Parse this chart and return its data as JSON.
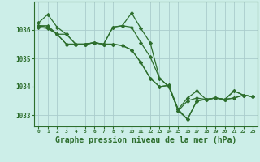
{
  "background_color": "#cceee8",
  "grid_color": "#aacccc",
  "line_color": "#2d6e2d",
  "marker": "D",
  "marker_size": 2.2,
  "linewidth": 0.9,
  "xlabel": "Graphe pression niveau de la mer (hPa)",
  "xlabel_fontsize": 7,
  "ylabel_ticks": [
    1033,
    1034,
    1035,
    1036
  ],
  "xticks": [
    0,
    1,
    2,
    3,
    4,
    5,
    6,
    7,
    8,
    9,
    10,
    11,
    12,
    13,
    14,
    15,
    16,
    17,
    18,
    19,
    20,
    21,
    22,
    23
  ],
  "xlim": [
    -0.5,
    23.5
  ],
  "ylim": [
    1032.6,
    1037.0
  ],
  "series": [
    [
      1036.25,
      1036.55,
      1036.1,
      1035.85,
      1035.5,
      1035.5,
      1035.55,
      1035.5,
      1036.1,
      1036.15,
      1036.6,
      1036.05,
      1035.55,
      1034.3,
      1034.0,
      1033.2,
      1032.85,
      1033.5,
      1033.55,
      1033.6,
      1033.55,
      1033.85,
      1033.7,
      1033.65
    ],
    [
      1036.15,
      1036.1,
      1035.85,
      1035.5,
      1035.5,
      1035.5,
      1035.55,
      1035.5,
      1035.5,
      1035.45,
      1035.3,
      1034.85,
      1034.3,
      1034.0,
      1034.05,
      1033.2,
      1033.6,
      1033.85,
      1033.55,
      1033.6,
      1033.55,
      1033.6,
      1033.7,
      1033.65
    ],
    [
      1036.15,
      1036.15,
      1035.85,
      1035.85,
      1035.5,
      1035.5,
      1035.55,
      1035.5,
      1036.1,
      1036.15,
      1036.1,
      1035.55,
      1035.05,
      1034.3,
      1034.0,
      1033.15,
      1032.85,
      1033.5,
      1033.55,
      1033.6,
      1033.55,
      1033.85,
      1033.7,
      1033.65
    ],
    [
      1036.1,
      1036.05,
      1035.85,
      1035.5,
      1035.5,
      1035.5,
      1035.55,
      1035.5,
      1035.5,
      1035.45,
      1035.3,
      1034.85,
      1034.3,
      1034.0,
      1034.05,
      1033.15,
      1033.5,
      1033.6,
      1033.55,
      1033.6,
      1033.55,
      1033.6,
      1033.7,
      1033.65
    ]
  ]
}
